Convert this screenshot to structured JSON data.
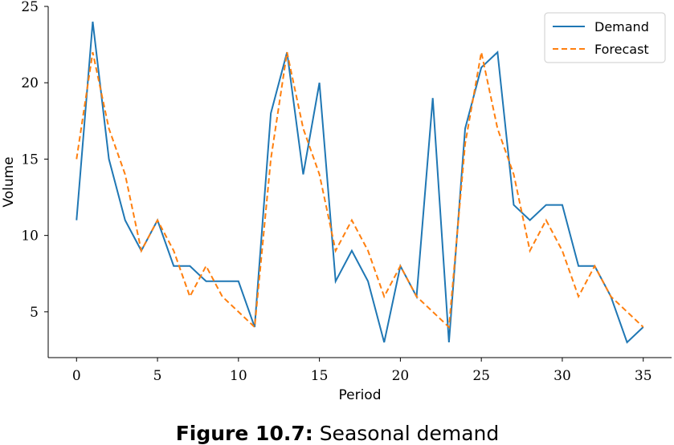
{
  "chart_data": {
    "type": "line",
    "caption_label": "Figure 10.7:",
    "caption_text": "Seasonal demand",
    "xlabel": "Period",
    "ylabel": "Volume",
    "x": [
      0,
      1,
      2,
      3,
      4,
      5,
      6,
      7,
      8,
      9,
      10,
      11,
      12,
      13,
      14,
      15,
      16,
      17,
      18,
      19,
      20,
      21,
      22,
      23,
      24,
      25,
      26,
      27,
      28,
      29,
      30,
      31,
      32,
      33,
      34,
      35
    ],
    "series": [
      {
        "name": "Demand",
        "color": "#1f77b4",
        "dash": "solid",
        "values": [
          11,
          24,
          15,
          11,
          9,
          11,
          8,
          8,
          7,
          7,
          7,
          4,
          18,
          22,
          14,
          20,
          7,
          9,
          7,
          3,
          8,
          6,
          19,
          3,
          17,
          21,
          22,
          12,
          11,
          12,
          12,
          8,
          8,
          6,
          3,
          4
        ]
      },
      {
        "name": "Forecast",
        "color": "#ff7f0e",
        "dash": "dashed",
        "values": [
          15,
          22,
          17,
          14,
          9,
          11,
          9,
          6,
          8,
          6,
          5,
          4,
          15,
          22,
          17,
          14,
          9,
          11,
          9,
          6,
          8,
          6,
          5,
          4,
          16,
          22,
          17,
          14,
          9,
          11,
          9,
          6,
          8,
          6,
          5,
          4
        ]
      }
    ],
    "xlim": [
      -1.75,
      36.75
    ],
    "ylim": [
      2,
      25
    ],
    "xticks": [
      0,
      5,
      10,
      15,
      20,
      25,
      30,
      35
    ],
    "yticks": [
      5,
      10,
      15,
      20,
      25
    ],
    "legend": "upper right"
  }
}
